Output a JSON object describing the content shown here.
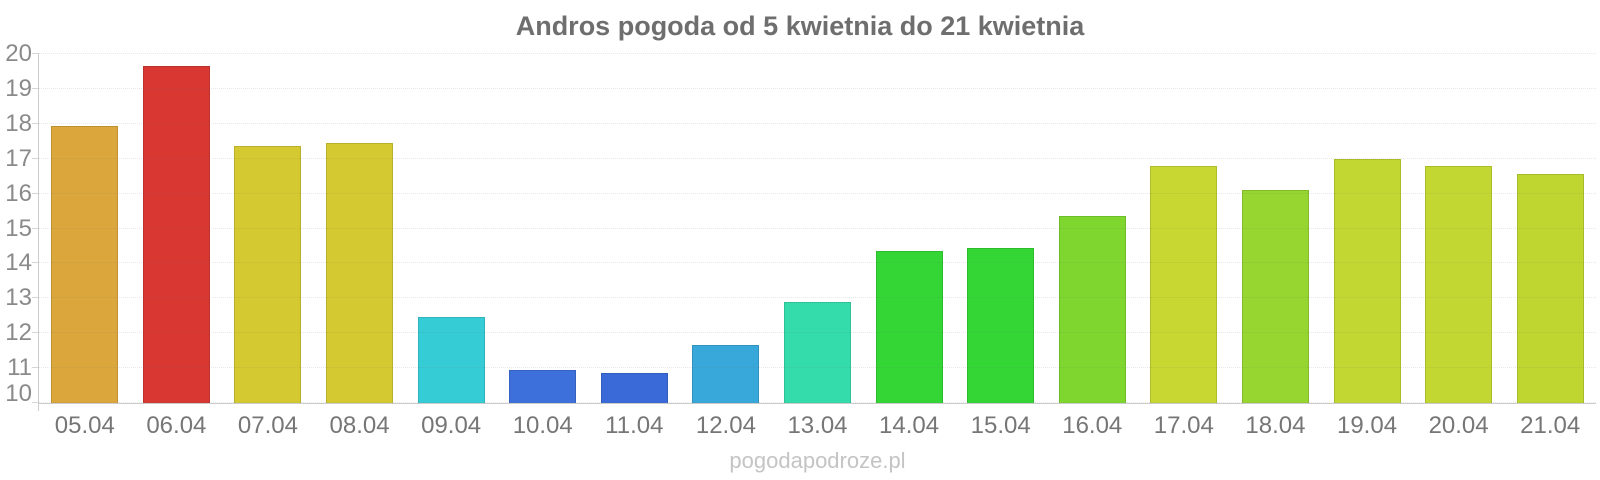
{
  "title": "Andros pogoda od 5 kwietnia do 21 kwietnia",
  "watermark": "pogodapodroze.pl",
  "chart_data": {
    "type": "bar",
    "title": "Andros pogoda od 5 kwietnia do 21 kwietnia",
    "categories": [
      "05.04",
      "06.04",
      "07.04",
      "08.04",
      "09.04",
      "10.04",
      "11.04",
      "12.04",
      "13.04",
      "14.04",
      "15.04",
      "16.04",
      "17.04",
      "18.04",
      "19.04",
      "20.04",
      "21.04"
    ],
    "values": [
      17.95,
      19.65,
      17.35,
      17.45,
      12.45,
      10.95,
      10.85,
      11.65,
      12.9,
      14.35,
      14.45,
      15.35,
      16.8,
      16.1,
      17.0,
      16.8,
      16.55
    ],
    "bar_colors": [
      "#dba63b",
      "#d93732",
      "#d5c931",
      "#d5c931",
      "#35ccd6",
      "#3d70da",
      "#3a6ad8",
      "#38a7d9",
      "#35dcab",
      "#33d634",
      "#33d634",
      "#7ed62f",
      "#c8d731",
      "#97d530",
      "#c2d731",
      "#c3d732",
      "#bfd630"
    ],
    "xlabel": "",
    "ylabel": "",
    "ylim": [
      10,
      20
    ],
    "yticks": [
      10,
      11,
      12,
      13,
      14,
      15,
      16,
      17,
      18,
      19,
      20
    ],
    "grid": "horizontal-dotted",
    "legend": "none"
  },
  "colors": {
    "background": "#ffffff",
    "title_text": "#6e6e6e",
    "axis_line": "#cccccc",
    "y_tick_label": "#8a8a8a",
    "x_tick_label": "#767676",
    "gridline": "#e9e9e9",
    "watermark_text": "#c4c4c4"
  }
}
